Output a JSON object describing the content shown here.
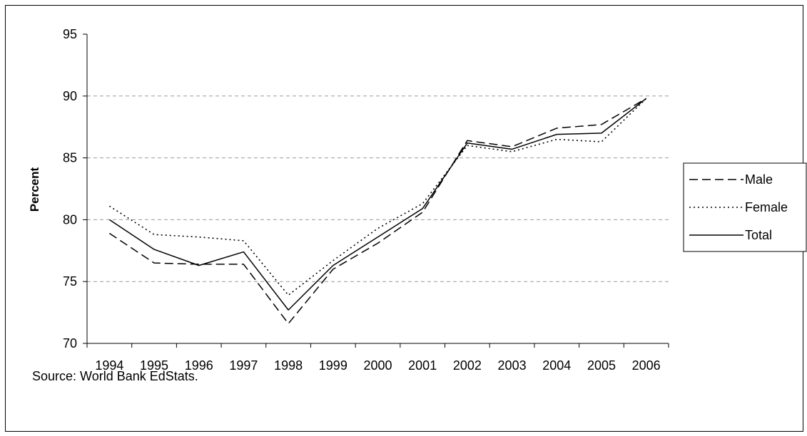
{
  "chart_data": {
    "type": "line",
    "title": "",
    "ylabel": "Percent",
    "xlabel": "",
    "ylim": [
      70,
      95
    ],
    "yticks": [
      70,
      75,
      80,
      85,
      90,
      95
    ],
    "grid": "horizontal-dashed",
    "legend_position": "right",
    "categories": [
      "1994",
      "1995",
      "1996",
      "1997",
      "1998",
      "1999",
      "2000",
      "2001",
      "2002",
      "2003",
      "2004",
      "2005",
      "2006"
    ],
    "series": [
      {
        "name": "Male",
        "style": "dashed",
        "color": "#000000",
        "values": [
          78.9,
          76.5,
          76.4,
          76.4,
          71.6,
          76.0,
          78.1,
          80.6,
          86.4,
          85.9,
          87.4,
          87.7,
          89.8
        ]
      },
      {
        "name": "Female",
        "style": "dotted",
        "color": "#000000",
        "values": [
          81.1,
          78.8,
          78.6,
          78.3,
          73.9,
          76.7,
          79.3,
          81.3,
          86.0,
          85.5,
          86.5,
          86.3,
          89.8
        ]
      },
      {
        "name": "Total",
        "style": "solid",
        "color": "#000000",
        "values": [
          80.0,
          77.6,
          76.3,
          77.4,
          72.7,
          76.3,
          78.6,
          80.9,
          86.2,
          85.7,
          86.9,
          87.0,
          89.8
        ]
      }
    ],
    "source_note": "Source: World Bank EdStats."
  }
}
